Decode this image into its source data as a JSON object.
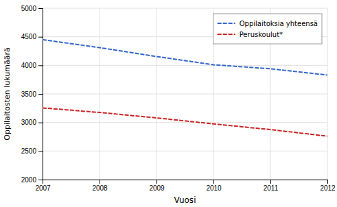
{
  "chart_data": {
    "type": "line",
    "x": [
      2007,
      2008,
      2009,
      2010,
      2011,
      2012
    ],
    "series": [
      {
        "name": "Oppilaitoksia yhteensä",
        "color": "#3366CC",
        "line_style": "dashed",
        "values": [
          4450,
          4310,
          4155,
          4010,
          3940,
          3830
        ]
      },
      {
        "name": "Peruskoulut*",
        "color": "#CC2222",
        "line_style": "dashed",
        "values": [
          3255,
          3175,
          3080,
          2975,
          2875,
          2760
        ]
      }
    ],
    "xlabel": "Vuosi",
    "ylabel": "Oppilaitosten lukumäärä",
    "xlim": [
      2007,
      2012
    ],
    "xticks": [
      2007,
      2008,
      2009,
      2010,
      2011,
      2012
    ],
    "ylim": [
      2000,
      5000
    ],
    "yticks": [
      2000,
      2500,
      3000,
      3500,
      4000,
      4500,
      5000
    ],
    "grid": true,
    "legend": "upper right"
  }
}
